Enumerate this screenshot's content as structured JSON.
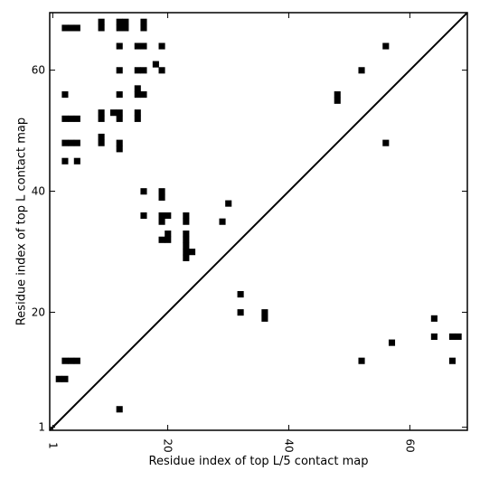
{
  "chart_data": {
    "type": "heatmap",
    "xlabel": "Residue index of top L/5 contact map",
    "ylabel": "Residue index of top L contact map",
    "xlim": [
      0.5,
      69.5
    ],
    "ylim": [
      0.5,
      69.5
    ],
    "x_ticks": [
      {
        "value": 1,
        "label": "1"
      },
      {
        "value": 20,
        "label": "20"
      },
      {
        "value": 40,
        "label": "40"
      },
      {
        "value": 60,
        "label": "60"
      }
    ],
    "y_ticks": [
      {
        "value": 1,
        "label": "1"
      },
      {
        "value": 20,
        "label": "20"
      },
      {
        "value": 40,
        "label": "40"
      },
      {
        "value": 60,
        "label": "60"
      }
    ],
    "diagonal": true,
    "cell_color": "#000000",
    "upper_cells": [
      [
        3,
        67
      ],
      [
        4,
        67
      ],
      [
        5,
        67
      ],
      [
        9,
        67
      ],
      [
        9,
        68
      ],
      [
        12,
        67
      ],
      [
        12,
        68
      ],
      [
        13,
        67
      ],
      [
        13,
        68
      ],
      [
        16,
        67
      ],
      [
        16,
        68
      ],
      [
        12,
        64
      ],
      [
        15,
        64
      ],
      [
        16,
        64
      ],
      [
        19,
        64
      ],
      [
        18,
        61
      ],
      [
        12,
        60
      ],
      [
        15,
        60
      ],
      [
        16,
        60
      ],
      [
        19,
        60
      ],
      [
        15,
        57
      ],
      [
        15,
        56
      ],
      [
        16,
        56
      ],
      [
        3,
        56
      ],
      [
        12,
        56
      ],
      [
        11,
        53
      ],
      [
        12,
        53
      ],
      [
        12,
        52
      ],
      [
        9,
        53
      ],
      [
        9,
        52
      ],
      [
        15,
        53
      ],
      [
        15,
        52
      ],
      [
        3,
        52
      ],
      [
        4,
        52
      ],
      [
        5,
        52
      ],
      [
        9,
        49
      ],
      [
        9,
        48
      ],
      [
        3,
        48
      ],
      [
        4,
        48
      ],
      [
        5,
        48
      ],
      [
        12,
        48
      ],
      [
        12,
        47
      ],
      [
        3,
        45
      ],
      [
        5,
        45
      ],
      [
        16,
        40
      ],
      [
        19,
        40
      ],
      [
        19,
        39
      ],
      [
        30,
        38
      ],
      [
        16,
        36
      ],
      [
        19,
        36
      ],
      [
        20,
        36
      ],
      [
        19,
        35
      ],
      [
        23,
        36
      ],
      [
        23,
        35
      ],
      [
        29,
        35
      ],
      [
        20,
        33
      ],
      [
        20,
        32
      ],
      [
        19,
        32
      ],
      [
        23,
        33
      ],
      [
        23,
        32
      ],
      [
        23,
        31
      ],
      [
        23,
        30
      ],
      [
        23,
        29
      ],
      [
        24,
        30
      ],
      [
        48,
        56
      ],
      [
        48,
        55
      ],
      [
        52,
        60
      ],
      [
        56,
        64
      ],
      [
        56,
        48
      ]
    ],
    "lower_cells": [
      [
        32,
        23
      ],
      [
        32,
        20
      ],
      [
        36,
        20
      ],
      [
        36,
        19
      ],
      [
        64,
        19
      ],
      [
        64,
        16
      ],
      [
        57,
        15
      ],
      [
        67,
        16
      ],
      [
        68,
        16
      ],
      [
        52,
        12
      ],
      [
        67,
        12
      ],
      [
        3,
        12
      ],
      [
        4,
        12
      ],
      [
        5,
        12
      ],
      [
        2,
        9
      ],
      [
        3,
        9
      ],
      [
        12,
        4
      ]
    ]
  }
}
